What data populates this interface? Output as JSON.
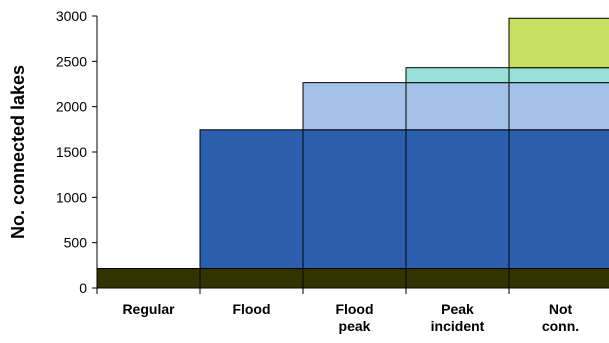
{
  "chart_data": {
    "type": "bar",
    "stacked": true,
    "categories": [
      "Regular",
      "Flood",
      "Flood\npeak",
      "Peak\nincident",
      "Not\nconn."
    ],
    "series": [
      {
        "values": [
          215,
          215,
          215,
          215,
          215
        ],
        "color": "#333300"
      },
      {
        "values": [
          0,
          1530,
          1530,
          1530,
          1530
        ],
        "color": "#2b5fad"
      },
      {
        "values": [
          0,
          0,
          520,
          520,
          520
        ],
        "color": "#a4c2e8"
      },
      {
        "values": [
          0,
          0,
          0,
          165,
          165
        ],
        "color": "#99e0d8"
      },
      {
        "values": [
          0,
          0,
          0,
          0,
          545
        ],
        "color": "#c8e060"
      }
    ],
    "xlabel": "",
    "ylabel": "No. connected lakes",
    "ylim": [
      0,
      3000
    ],
    "yticks": [
      0,
      500,
      1000,
      1500,
      2000,
      2500,
      3000
    ],
    "grid": false,
    "legend": "none"
  }
}
